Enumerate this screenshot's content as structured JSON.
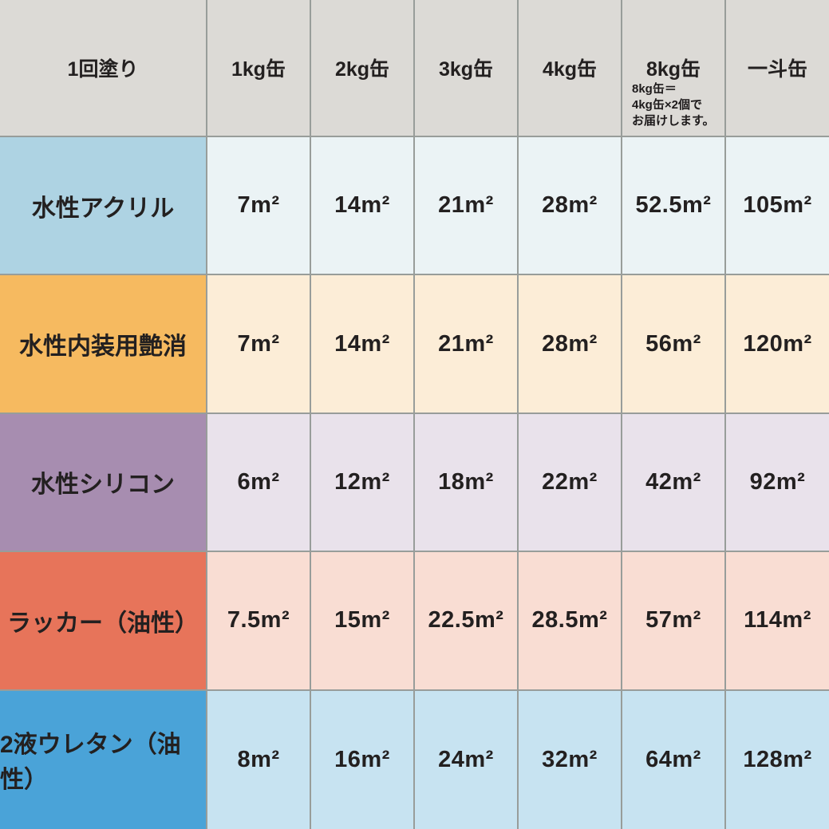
{
  "table": {
    "header": {
      "row_label": "1回塗り",
      "columns": [
        {
          "label": "1kg缶"
        },
        {
          "label": "2kg缶"
        },
        {
          "label": "3kg缶"
        },
        {
          "label": "4kg缶"
        },
        {
          "label": "8kg缶",
          "note_lines": [
            "8kg缶＝",
            "4kg缶×2個で",
            "お届けします。"
          ]
        },
        {
          "label": "一斗缶"
        }
      ]
    },
    "rows": [
      {
        "name": "水性アクリル",
        "cells": [
          "7m²",
          "14m²",
          "21m²",
          "28m²",
          "52.5m²",
          "105m²"
        ]
      },
      {
        "name": "水性内装用艶消",
        "cells": [
          "7m²",
          "14m²",
          "21m²",
          "28m²",
          "56m²",
          "120m²"
        ]
      },
      {
        "name": "水性シリコン",
        "cells": [
          "6m²",
          "12m²",
          "18m²",
          "22m²",
          "42m²",
          "92m²"
        ]
      },
      {
        "name": "ラッカー（油性）",
        "cells": [
          "7.5m²",
          "15m²",
          "22.5m²",
          "28.5m²",
          "57m²",
          "114m²"
        ]
      },
      {
        "name": "2液ウレタン（油性）",
        "cells": [
          "8m²",
          "16m²",
          "24m²",
          "32m²",
          "64m²",
          "128m²"
        ]
      }
    ]
  },
  "chart_data": {
    "type": "table",
    "title": "1回塗り",
    "unit": "m²",
    "columns": [
      "1kg缶",
      "2kg缶",
      "3kg缶",
      "4kg缶",
      "8kg缶",
      "一斗缶"
    ],
    "note": "8kg缶＝4kg缶×2個でお届けします。",
    "rows": [
      {
        "name": "水性アクリル",
        "values_m2": [
          7,
          14,
          21,
          28,
          52.5,
          105
        ]
      },
      {
        "name": "水性内装用艶消",
        "values_m2": [
          7,
          14,
          21,
          28,
          56,
          120
        ]
      },
      {
        "name": "水性シリコン",
        "values_m2": [
          6,
          12,
          18,
          22,
          42,
          92
        ]
      },
      {
        "name": "ラッカー（油性）",
        "values_m2": [
          7.5,
          15,
          22.5,
          28.5,
          57,
          114
        ]
      },
      {
        "name": "2液ウレタン（油性）",
        "values_m2": [
          8,
          16,
          24,
          32,
          64,
          128
        ]
      }
    ]
  },
  "colors": {
    "header_bg": "#dcdad6",
    "grid_line": "#989d9a",
    "text": "#232020",
    "row_label_bg": [
      "#aed3e3",
      "#f6ba60",
      "#a78db0",
      "#e7745a",
      "#4aa3d8"
    ],
    "row_cell_bg": [
      "#ebf3f5",
      "#fcedd7",
      "#e9e2eb",
      "#f9ddd3",
      "#c7e3f1"
    ]
  }
}
